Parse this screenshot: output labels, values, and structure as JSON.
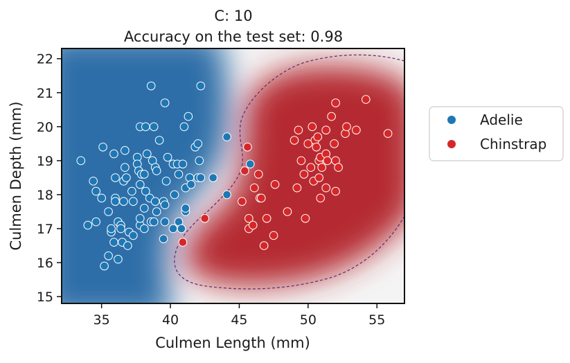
{
  "chart_data": {
    "type": "scatter",
    "title_line1": "C: 10",
    "title_line2": "Accuracy on the test set: 0.98",
    "xlabel": "Culmen Length (mm)",
    "ylabel": "Culmen Depth (mm)",
    "xlim": [
      32.1,
      57.0
    ],
    "ylim": [
      14.8,
      22.3
    ],
    "xticks": [
      35,
      40,
      45,
      50,
      55
    ],
    "yticks": [
      15,
      16,
      17,
      18,
      19,
      20,
      21,
      22
    ],
    "grid": false,
    "legend_position": "right",
    "background": "decision function heatmap (blue = Adelie, red = Chinstrap) with dashed purple decision boundary",
    "colors": {
      "Adelie": "#1f77b4",
      "Chinstrap": "#d62728",
      "boundary": "#5b2a6e"
    },
    "series": [
      {
        "name": "Adelie",
        "points": [
          [
            33.5,
            19.0
          ],
          [
            34.0,
            17.1
          ],
          [
            34.4,
            18.4
          ],
          [
            34.6,
            18.1
          ],
          [
            34.6,
            17.2
          ],
          [
            35.0,
            17.9
          ],
          [
            35.1,
            19.4
          ],
          [
            35.2,
            15.9
          ],
          [
            35.5,
            16.2
          ],
          [
            35.5,
            17.5
          ],
          [
            35.7,
            16.9
          ],
          [
            35.7,
            17.0
          ],
          [
            35.9,
            19.2
          ],
          [
            35.9,
            16.6
          ],
          [
            36.0,
            17.9
          ],
          [
            36.0,
            17.8
          ],
          [
            36.0,
            18.5
          ],
          [
            36.2,
            17.2
          ],
          [
            36.2,
            16.1
          ],
          [
            36.4,
            17.1
          ],
          [
            36.4,
            17.0
          ],
          [
            36.5,
            16.6
          ],
          [
            36.6,
            17.8
          ],
          [
            36.6,
            18.4
          ],
          [
            36.7,
            19.3
          ],
          [
            36.7,
            18.8
          ],
          [
            36.8,
            18.5
          ],
          [
            36.9,
            16.5
          ],
          [
            37.0,
            16.9
          ],
          [
            37.2,
            18.1
          ],
          [
            37.3,
            17.8
          ],
          [
            37.3,
            16.8
          ],
          [
            37.6,
            19.1
          ],
          [
            37.6,
            18.9
          ],
          [
            37.7,
            18.7
          ],
          [
            37.8,
            17.1
          ],
          [
            37.8,
            17.3
          ],
          [
            37.8,
            18.3
          ],
          [
            37.8,
            20.0
          ],
          [
            37.9,
            18.6
          ],
          [
            38.1,
            18.6
          ],
          [
            38.1,
            17.6
          ],
          [
            38.1,
            17.0
          ],
          [
            38.2,
            18.1
          ],
          [
            38.2,
            20.0
          ],
          [
            38.3,
            19.2
          ],
          [
            38.5,
            17.9
          ],
          [
            38.6,
            17.2
          ],
          [
            38.6,
            21.2
          ],
          [
            38.7,
            19.0
          ],
          [
            38.8,
            17.2
          ],
          [
            38.8,
            20.0
          ],
          [
            38.9,
            18.8
          ],
          [
            38.9,
            17.8
          ],
          [
            39.0,
            17.5
          ],
          [
            39.0,
            18.7
          ],
          [
            39.2,
            19.6
          ],
          [
            39.5,
            17.8
          ],
          [
            39.5,
            16.7
          ],
          [
            39.6,
            17.2
          ],
          [
            39.6,
            17.7
          ],
          [
            39.6,
            20.7
          ],
          [
            39.7,
            18.4
          ],
          [
            39.8,
            19.1
          ],
          [
            40.2,
            17.0
          ],
          [
            40.2,
            18.9
          ],
          [
            40.3,
            18.0
          ],
          [
            40.5,
            18.9
          ],
          [
            40.6,
            17.2
          ],
          [
            40.6,
            18.6
          ],
          [
            40.8,
            17.0
          ],
          [
            40.9,
            18.9
          ],
          [
            41.0,
            20.0
          ],
          [
            41.1,
            17.5
          ],
          [
            41.1,
            17.6
          ],
          [
            41.1,
            18.2
          ],
          [
            41.3,
            20.3
          ],
          [
            41.4,
            18.5
          ],
          [
            41.5,
            18.3
          ],
          [
            41.8,
            19.4
          ],
          [
            42.0,
            19.5
          ],
          [
            42.0,
            18.5
          ],
          [
            42.1,
            19.0
          ],
          [
            42.2,
            21.2
          ],
          [
            42.2,
            18.5
          ],
          [
            43.1,
            18.5
          ],
          [
            44.1,
            19.7
          ],
          [
            44.1,
            18.0
          ],
          [
            45.8,
            18.9
          ]
        ]
      },
      {
        "name": "Chinstrap",
        "points": [
          [
            40.9,
            16.6
          ],
          [
            42.5,
            17.3
          ],
          [
            45.2,
            17.8
          ],
          [
            45.4,
            18.7
          ],
          [
            45.6,
            19.4
          ],
          [
            45.7,
            17.3
          ],
          [
            45.7,
            17.0
          ],
          [
            46.0,
            17.1
          ],
          [
            46.1,
            18.2
          ],
          [
            46.4,
            18.6
          ],
          [
            46.5,
            17.9
          ],
          [
            46.6,
            17.9
          ],
          [
            46.8,
            16.5
          ],
          [
            47.0,
            17.3
          ],
          [
            47.5,
            16.8
          ],
          [
            47.6,
            18.3
          ],
          [
            48.5,
            17.5
          ],
          [
            49.0,
            19.6
          ],
          [
            49.2,
            18.2
          ],
          [
            49.3,
            19.9
          ],
          [
            49.5,
            19.0
          ],
          [
            49.7,
            18.6
          ],
          [
            49.8,
            17.3
          ],
          [
            50.0,
            19.5
          ],
          [
            50.2,
            18.8
          ],
          [
            50.3,
            20.0
          ],
          [
            50.4,
            18.4
          ],
          [
            50.5,
            19.6
          ],
          [
            50.6,
            19.4
          ],
          [
            50.7,
            19.7
          ],
          [
            50.8,
            18.5
          ],
          [
            50.8,
            19.0
          ],
          [
            50.9,
            17.9
          ],
          [
            50.9,
            19.1
          ],
          [
            51.0,
            18.8
          ],
          [
            51.3,
            18.2
          ],
          [
            51.3,
            19.2
          ],
          [
            51.3,
            19.9
          ],
          [
            51.4,
            19.0
          ],
          [
            51.7,
            20.3
          ],
          [
            51.9,
            19.5
          ],
          [
            52.0,
            18.1
          ],
          [
            52.0,
            19.0
          ],
          [
            52.0,
            20.7
          ],
          [
            52.2,
            18.8
          ],
          [
            52.7,
            19.8
          ],
          [
            52.8,
            20.0
          ],
          [
            53.5,
            19.9
          ],
          [
            54.2,
            20.8
          ],
          [
            55.8,
            19.8
          ]
        ]
      }
    ]
  }
}
